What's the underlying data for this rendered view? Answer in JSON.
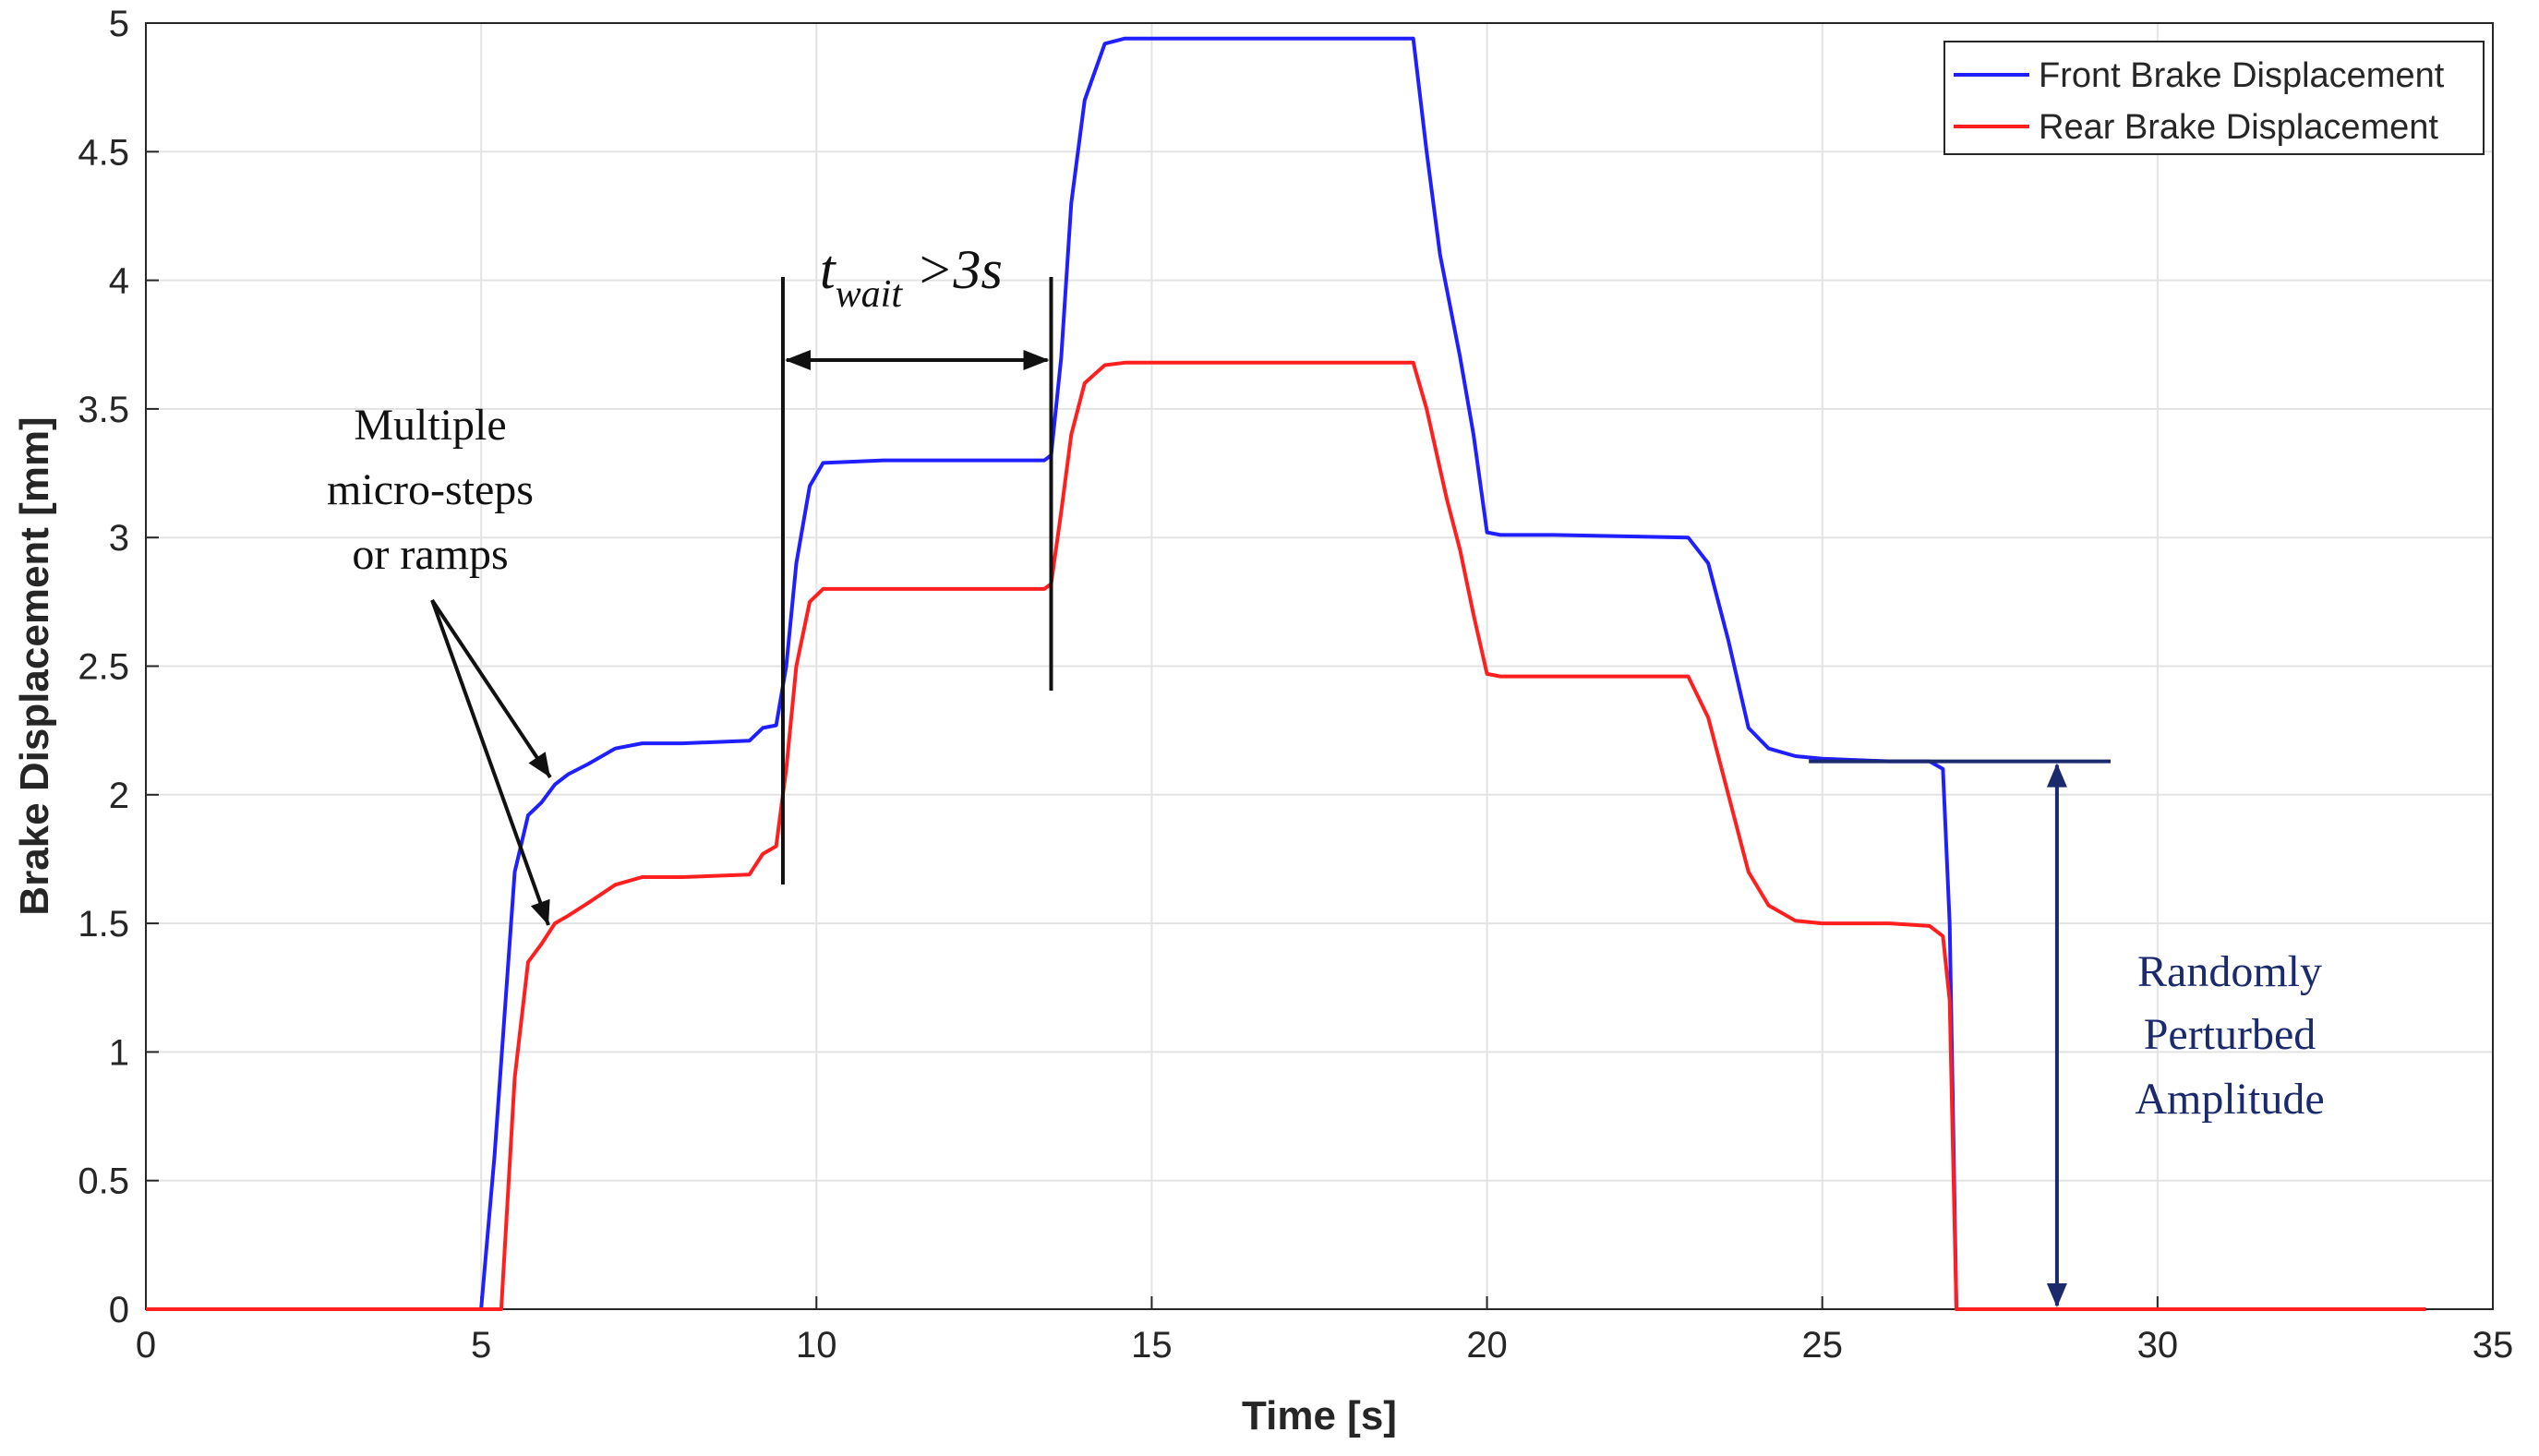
{
  "chart_data": {
    "type": "line",
    "title": "",
    "xlabel": "Time [s]",
    "ylabel": "Brake Displacement [mm]",
    "xlim": [
      0,
      35
    ],
    "ylim": [
      0,
      5
    ],
    "xticks": [
      "0",
      "5",
      "10",
      "15",
      "20",
      "25",
      "30",
      "35"
    ],
    "yticks": [
      "0",
      "0.5",
      "1",
      "1.5",
      "2",
      "2.5",
      "3",
      "3.5",
      "4",
      "4.5",
      "5"
    ],
    "grid": true,
    "legend_position": "top-right",
    "series": [
      {
        "name": "Front Brake Displacement",
        "color": "#1f1fff",
        "x": [
          0,
          5.0,
          5.2,
          5.5,
          5.7,
          5.9,
          6.1,
          6.3,
          6.6,
          7.0,
          7.4,
          8.0,
          9.0,
          9.2,
          9.4,
          9.55,
          9.7,
          9.9,
          10.1,
          11.0,
          13.4,
          13.5,
          13.65,
          13.8,
          14.0,
          14.3,
          14.6,
          15.0,
          18.9,
          19.1,
          19.3,
          19.6,
          19.8,
          20.0,
          20.2,
          21.0,
          23.0,
          23.3,
          23.6,
          23.9,
          24.2,
          24.6,
          25.0,
          26.0,
          26.6,
          26.8,
          26.9,
          27.0,
          27.1,
          34.0
        ],
        "y": [
          0,
          0,
          0.6,
          1.7,
          1.92,
          1.97,
          2.04,
          2.08,
          2.12,
          2.18,
          2.2,
          2.2,
          2.21,
          2.26,
          2.27,
          2.5,
          2.9,
          3.2,
          3.29,
          3.3,
          3.3,
          3.32,
          3.7,
          4.3,
          4.7,
          4.92,
          4.94,
          4.94,
          4.94,
          4.5,
          4.1,
          3.7,
          3.4,
          3.02,
          3.01,
          3.01,
          3.0,
          2.9,
          2.6,
          2.26,
          2.18,
          2.15,
          2.14,
          2.13,
          2.13,
          2.1,
          1.5,
          0.0,
          0.0,
          0.0
        ]
      },
      {
        "name": "Rear Brake Displacement",
        "color": "#ff1f1f",
        "x": [
          0,
          5.3,
          5.5,
          5.7,
          5.9,
          6.1,
          6.3,
          6.6,
          7.0,
          7.4,
          8.0,
          9.0,
          9.2,
          9.4,
          9.55,
          9.7,
          9.9,
          10.1,
          11.0,
          13.4,
          13.5,
          13.65,
          13.8,
          14.0,
          14.3,
          14.6,
          15.0,
          18.9,
          19.1,
          19.4,
          19.6,
          19.8,
          20.0,
          20.2,
          21.0,
          23.0,
          23.3,
          23.6,
          23.9,
          24.2,
          24.6,
          25.0,
          26.0,
          26.6,
          26.8,
          26.9,
          27.0,
          27.1,
          34.0
        ],
        "y": [
          0,
          0,
          0.9,
          1.35,
          1.42,
          1.5,
          1.53,
          1.58,
          1.65,
          1.68,
          1.68,
          1.69,
          1.77,
          1.8,
          2.1,
          2.5,
          2.75,
          2.8,
          2.8,
          2.8,
          2.82,
          3.1,
          3.4,
          3.6,
          3.67,
          3.68,
          3.68,
          3.68,
          3.5,
          3.15,
          2.95,
          2.7,
          2.47,
          2.46,
          2.46,
          2.46,
          2.3,
          2.0,
          1.7,
          1.57,
          1.51,
          1.5,
          1.5,
          1.49,
          1.45,
          1.2,
          0.0,
          0.0,
          0.0
        ]
      }
    ],
    "annotations": {
      "micro_steps_lines": [
        "Multiple",
        "micro-steps",
        "or ramps"
      ],
      "twait_main": "t",
      "twait_sub": "wait",
      "twait_rest": " >3s",
      "twait_range": [
        9.5,
        13.5
      ],
      "perturbed_lines": [
        "Randomly",
        "Perturbed",
        "Amplitude"
      ],
      "perturbed_level": 2.13,
      "perturbed_x": 28.5
    }
  }
}
